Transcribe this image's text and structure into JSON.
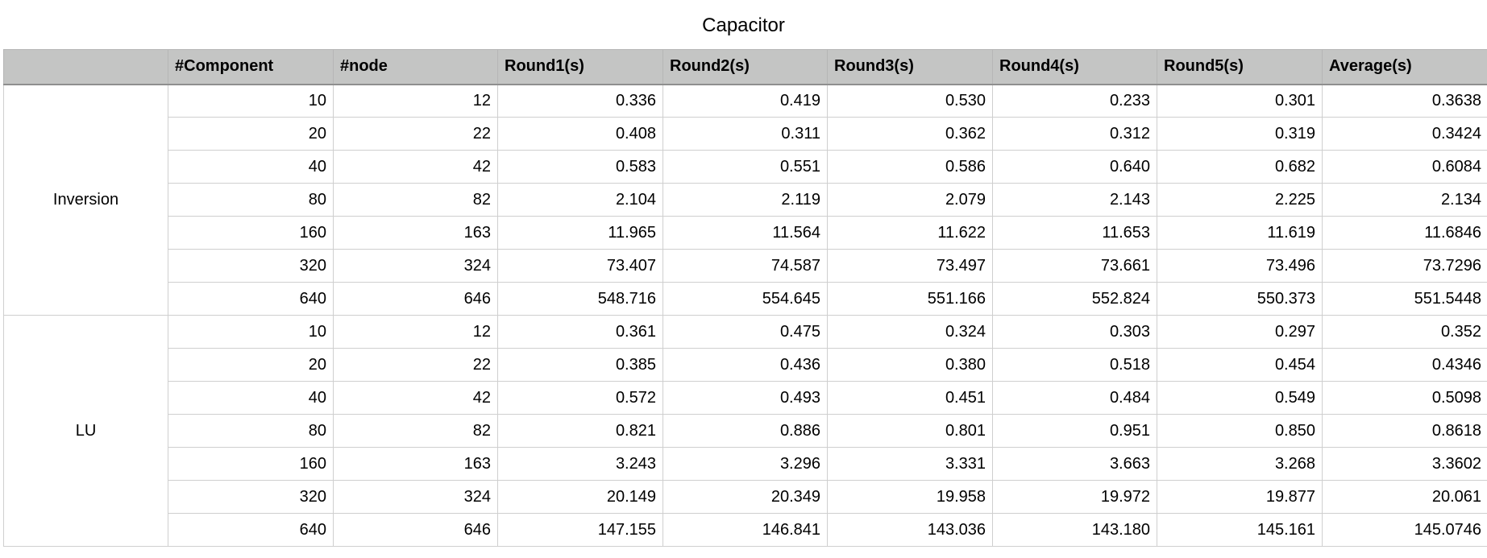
{
  "chart_data": {
    "type": "table",
    "title": "Capacitor",
    "columns": [
      "",
      "#Component",
      "#node",
      "Round1(s)",
      "Round2(s)",
      "Round3(s)",
      "Round4(s)",
      "Round5(s)",
      "Average(s)"
    ],
    "groups": [
      {
        "name": "Inversion",
        "rows": [
          [
            "10",
            "12",
            "0.336",
            "0.419",
            "0.530",
            "0.233",
            "0.301",
            "0.3638"
          ],
          [
            "20",
            "22",
            "0.408",
            "0.311",
            "0.362",
            "0.312",
            "0.319",
            "0.3424"
          ],
          [
            "40",
            "42",
            "0.583",
            "0.551",
            "0.586",
            "0.640",
            "0.682",
            "0.6084"
          ],
          [
            "80",
            "82",
            "2.104",
            "2.119",
            "2.079",
            "2.143",
            "2.225",
            "2.134"
          ],
          [
            "160",
            "163",
            "11.965",
            "11.564",
            "11.622",
            "11.653",
            "11.619",
            "11.6846"
          ],
          [
            "320",
            "324",
            "73.407",
            "74.587",
            "73.497",
            "73.661",
            "73.496",
            "73.7296"
          ],
          [
            "640",
            "646",
            "548.716",
            "554.645",
            "551.166",
            "552.824",
            "550.373",
            "551.5448"
          ]
        ]
      },
      {
        "name": "LU",
        "rows": [
          [
            "10",
            "12",
            "0.361",
            "0.475",
            "0.324",
            "0.303",
            "0.297",
            "0.352"
          ],
          [
            "20",
            "22",
            "0.385",
            "0.436",
            "0.380",
            "0.518",
            "0.454",
            "0.4346"
          ],
          [
            "40",
            "42",
            "0.572",
            "0.493",
            "0.451",
            "0.484",
            "0.549",
            "0.5098"
          ],
          [
            "80",
            "82",
            "0.821",
            "0.886",
            "0.801",
            "0.951",
            "0.850",
            "0.8618"
          ],
          [
            "160",
            "163",
            "3.243",
            "3.296",
            "3.331",
            "3.663",
            "3.268",
            "3.3602"
          ],
          [
            "320",
            "324",
            "20.149",
            "20.349",
            "19.958",
            "19.972",
            "19.877",
            "20.061"
          ],
          [
            "640",
            "646",
            "147.155",
            "146.841",
            "143.036",
            "143.180",
            "145.161",
            "145.0746"
          ]
        ]
      }
    ]
  }
}
